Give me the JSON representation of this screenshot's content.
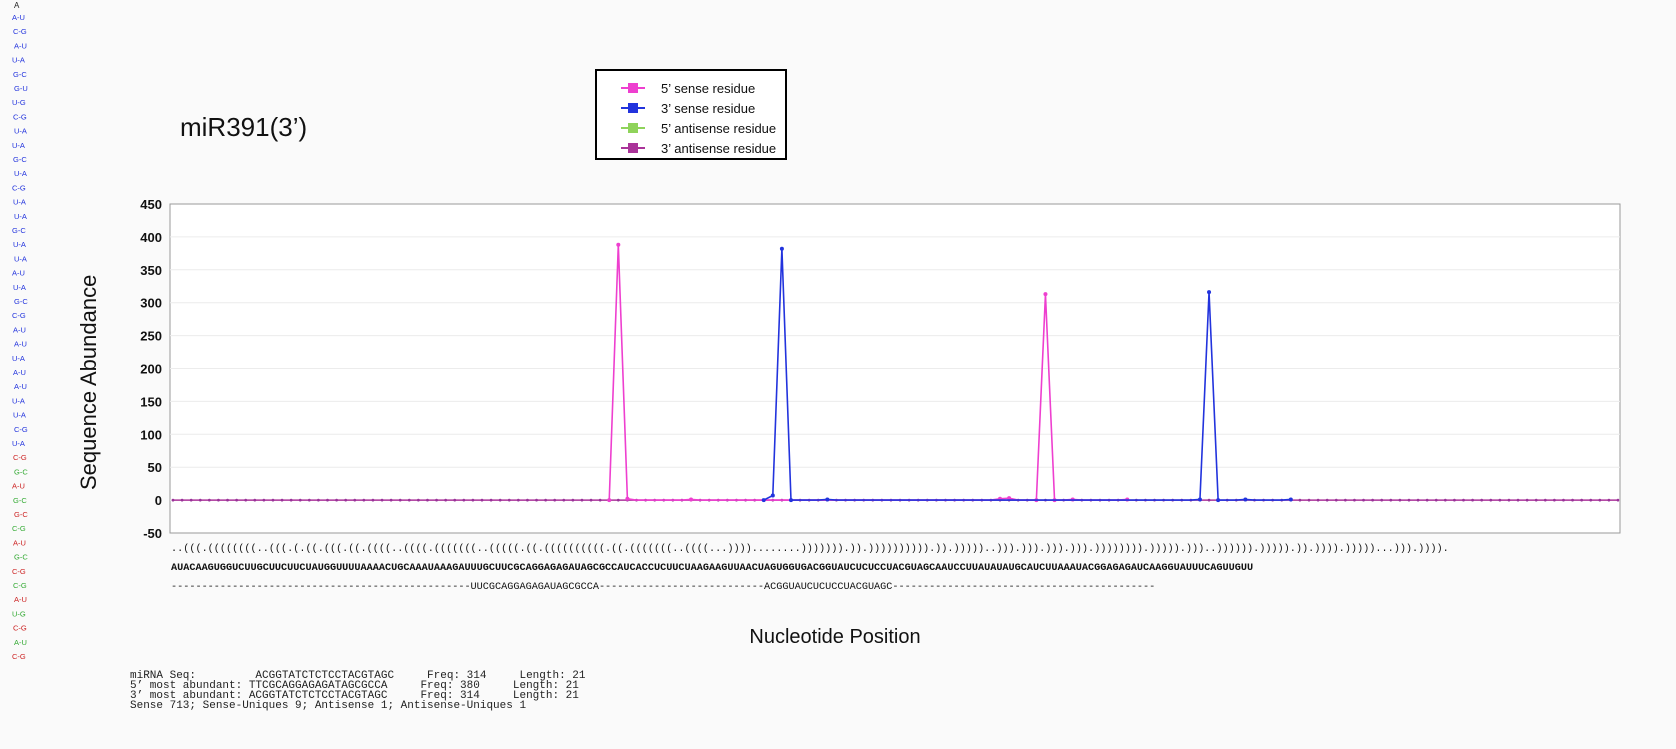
{
  "chart_data": {
    "type": "line",
    "title": "miR391(3’)",
    "xlabel": "Nucleotide Position",
    "ylabel": "Sequence Abundance",
    "ylim": [
      -50,
      450
    ],
    "yticks": [
      "450",
      "400",
      "350",
      "300",
      "250",
      "200",
      "150",
      "100",
      "50",
      "0",
      "-50"
    ],
    "n_positions": 160,
    "grid": true,
    "legend_position": "top-center",
    "legend": [
      {
        "name": "5’ sense residue",
        "color": "#ee3fcf"
      },
      {
        "name": "3’ sense residue",
        "color": "#2233dd"
      },
      {
        "name": "5’ antisense residue",
        "color": "#8fd35a"
      },
      {
        "name": "3’ antisense residue",
        "color": "#aa3399"
      }
    ],
    "series": [
      {
        "name": "5’ sense residue",
        "color": "#ee3fcf",
        "points": [
          [
            48,
            0
          ],
          [
            49,
            388
          ],
          [
            50,
            2
          ],
          [
            57,
            1
          ],
          [
            91,
            2
          ],
          [
            92,
            3
          ],
          [
            95,
            0
          ],
          [
            96,
            313
          ],
          [
            97,
            0
          ],
          [
            99,
            1
          ],
          [
            105,
            1
          ]
        ]
      },
      {
        "name": "3’ sense residue",
        "color": "#2233dd",
        "points": [
          [
            65,
            0
          ],
          [
            66,
            7
          ],
          [
            67,
            382
          ],
          [
            68,
            0
          ],
          [
            72,
            1
          ],
          [
            113,
            1
          ],
          [
            114,
            316
          ],
          [
            115,
            0
          ],
          [
            118,
            1
          ],
          [
            123,
            1
          ]
        ]
      },
      {
        "name": "5’ antisense residue",
        "color": "#8fd35a",
        "points": []
      },
      {
        "name": "3’ antisense residue",
        "color": "#aa3399",
        "points": []
      }
    ],
    "structure": "..(((.((((((((..(((.(.((.(((.((.((((..((((.(((((((..(((((.((.((((((((((.((.(((((((..((((...))))........))))))).)).)))))))))).)).)))))..))).))).))).))).)))))))).))))).)))..)))))).))))).)).)))).)))))...))).)))).",
    "sequence": "AUACAAGUGGUCUUGCUUCUUCUAUGGUUUUAAAACUGCAAAUAAAGAUUUGCUUCGCAGGAGAGAUAGCGCCAUCACCUCUUCUAAGAAGUUAACUAGUGGUGACGGUAUCUCUCCUACGUAGCAAUCCUUAUAUAUGCAUCUUAAAUACGGAGAGAUCAAGGUAUUUCAGUUGUU",
    "mapped": "-------------------------------------------------UUCGCAGGAGAGAUAGCGCCA---------------------------ACGGUAUCUCUCCUACGUAGC-------------------------------------------"
  },
  "summary": {
    "line1": "miRNA Seq:         ACGGTATCTCTCCTACGTAGC     Freq: 314     Length: 21",
    "line2": "5’ most abundant: TTCGCAGGAGAGATAGCGCCA     Freq: 380     Length: 21",
    "line3": "3’ most abundant: ACGGTATCTCTCCTACGTAGC     Freq: 314     Length: 21",
    "line4": "Sense 713; Sense-Uniques 9; Antisense 1; Antisense-Uniques 1"
  }
}
